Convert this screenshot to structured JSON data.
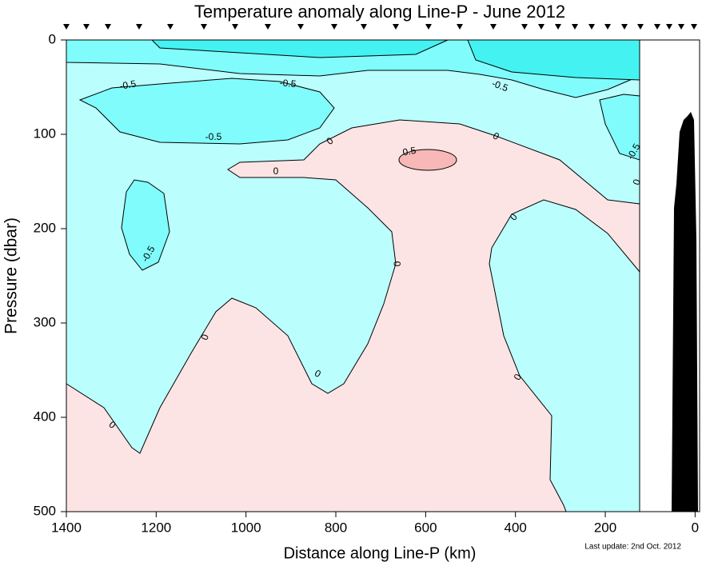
{
  "chart_data": {
    "type": "contour",
    "title": "Temperature anomaly along Line-P - June 2012",
    "x_label": "Distance along Line-P (km)",
    "y_label": "Pressure (dbar)",
    "xlim": [
      1400,
      -10
    ],
    "ylim": [
      0,
      500
    ],
    "xticks": [
      1400,
      1200,
      1000,
      800,
      600,
      400,
      200,
      0
    ],
    "yticks": [
      0,
      100,
      200,
      300,
      400,
      500
    ],
    "y_inverted": true,
    "contour_levels": [
      -0.5,
      0,
      0.5
    ],
    "annotation": "Last update: 2nd Oct. 2012"
  }
}
